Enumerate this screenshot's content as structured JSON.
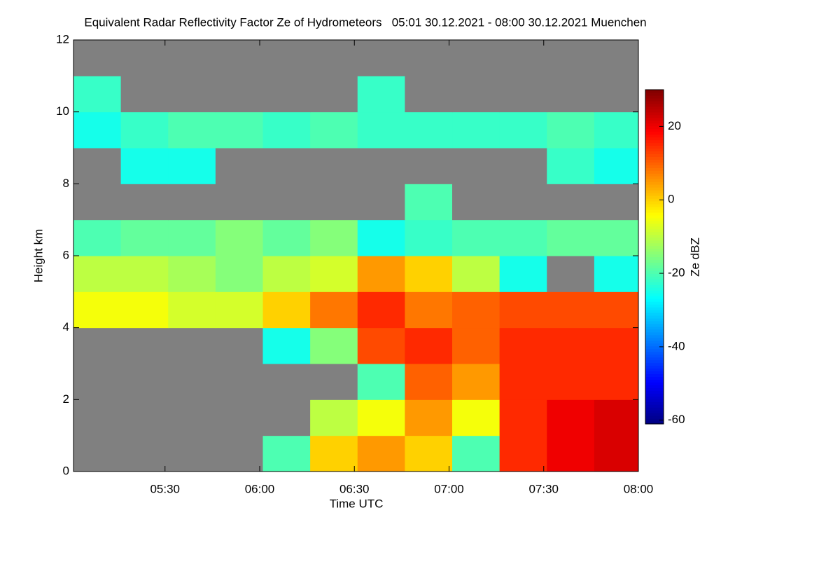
{
  "chart_data": {
    "type": "heatmap",
    "title": "Equivalent Radar Reflectivity Factor Ze of Hydrometeors   05:01 30.12.2021 - 08:00 30.12.2021 Muenchen",
    "x_label": "Time UTC",
    "y_label": "Height km",
    "colorbar_label": "Ze dBZ",
    "colormap": "jet",
    "missing_color": "#808080",
    "xlim": [
      301,
      480
    ],
    "xticks": [
      {
        "value": 330,
        "label": "05:30"
      },
      {
        "value": 360,
        "label": "06:00"
      },
      {
        "value": 390,
        "label": "06:30"
      },
      {
        "value": 420,
        "label": "07:00"
      },
      {
        "value": 450,
        "label": "07:30"
      },
      {
        "value": 480,
        "label": "08:00"
      }
    ],
    "ylim": [
      0,
      12
    ],
    "yticks": [
      0,
      2,
      4,
      6,
      8,
      10,
      12
    ],
    "zlim": [
      -61,
      30
    ],
    "zticks": [
      -60,
      -40,
      -20,
      0,
      20
    ],
    "xbins": [
      301,
      316,
      331,
      346,
      361,
      376,
      391,
      406,
      421,
      436,
      451,
      466,
      480
    ],
    "ybins": [
      0,
      1,
      2,
      3,
      4,
      5,
      6,
      7,
      8,
      9,
      10,
      11,
      12
    ],
    "z": [
      [
        null,
        null,
        null,
        null,
        -20,
        0,
        5,
        0,
        -20,
        15,
        20,
        22
      ],
      [
        null,
        null,
        null,
        null,
        null,
        -10,
        -5,
        5,
        -5,
        15,
        20,
        22
      ],
      [
        null,
        null,
        null,
        null,
        null,
        null,
        -20,
        10,
        5,
        15,
        15,
        15
      ],
      [
        null,
        null,
        null,
        null,
        -25,
        -15,
        12,
        15,
        10,
        15,
        15,
        15
      ],
      [
        -5,
        -5,
        -8,
        -8,
        0,
        8,
        15,
        8,
        10,
        12,
        12,
        12
      ],
      [
        -10,
        -10,
        -12,
        -15,
        -10,
        -8,
        5,
        0,
        -10,
        -25,
        null,
        -25
      ],
      [
        -20,
        -18,
        -18,
        -15,
        -18,
        -15,
        -25,
        -22,
        -20,
        -20,
        -18,
        -18
      ],
      [
        null,
        null,
        null,
        null,
        null,
        null,
        null,
        -20,
        null,
        null,
        null,
        null
      ],
      [
        null,
        -25,
        -25,
        null,
        null,
        null,
        null,
        null,
        null,
        null,
        -22,
        -25
      ],
      [
        -25,
        -22,
        -20,
        -20,
        -22,
        -20,
        -22,
        -22,
        -22,
        -22,
        -20,
        -22
      ],
      [
        -22,
        null,
        null,
        null,
        null,
        null,
        -22,
        null,
        null,
        null,
        null,
        null
      ],
      [
        null,
        null,
        null,
        null,
        null,
        null,
        null,
        null,
        null,
        null,
        null,
        null
      ]
    ]
  }
}
